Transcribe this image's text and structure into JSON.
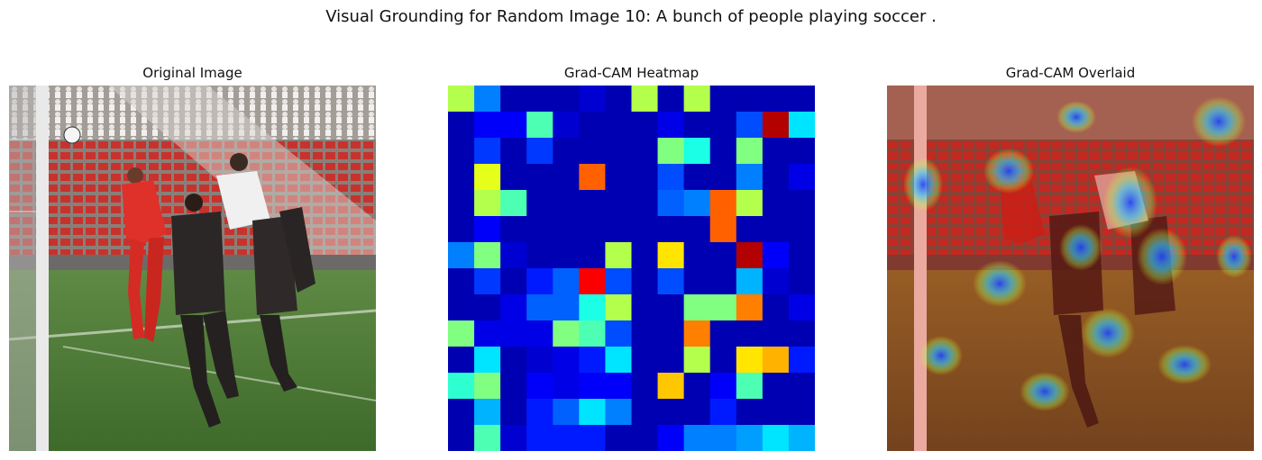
{
  "figure": {
    "suptitle": "Visual Grounding for Random Image 10: A bunch of people playing soccer ."
  },
  "panels": {
    "original_title": "Original Image",
    "heatmap_title": "Grad-CAM Heatmap",
    "overlay_title": "Grad-CAM Overlaid"
  },
  "heatmap": {
    "colormap": "jet",
    "rows": 14,
    "cols": 14,
    "values": [
      [
        0.55,
        0.25,
        0.05,
        0.05,
        0.05,
        0.08,
        0.05,
        0.55,
        0.05,
        0.55,
        0.05,
        0.05,
        0.05,
        0.05
      ],
      [
        0.05,
        0.12,
        0.12,
        0.45,
        0.08,
        0.05,
        0.05,
        0.05,
        0.1,
        0.05,
        0.05,
        0.2,
        0.95,
        0.35
      ],
      [
        0.05,
        0.18,
        0.05,
        0.18,
        0.05,
        0.05,
        0.05,
        0.05,
        0.5,
        0.4,
        0.05,
        0.5,
        0.05,
        0.05
      ],
      [
        0.05,
        0.6,
        0.05,
        0.05,
        0.05,
        0.78,
        0.05,
        0.05,
        0.2,
        0.05,
        0.05,
        0.25,
        0.05,
        0.1
      ],
      [
        0.05,
        0.55,
        0.45,
        0.05,
        0.05,
        0.05,
        0.05,
        0.05,
        0.22,
        0.25,
        0.78,
        0.55,
        0.05,
        0.05
      ],
      [
        0.05,
        0.12,
        0.05,
        0.05,
        0.05,
        0.05,
        0.05,
        0.05,
        0.05,
        0.05,
        0.78,
        0.05,
        0.05,
        0.05
      ],
      [
        0.25,
        0.5,
        0.08,
        0.05,
        0.05,
        0.05,
        0.55,
        0.05,
        0.65,
        0.05,
        0.05,
        0.95,
        0.12,
        0.05
      ],
      [
        0.05,
        0.18,
        0.05,
        0.15,
        0.22,
        0.88,
        0.2,
        0.05,
        0.2,
        0.05,
        0.05,
        0.3,
        0.08,
        0.05
      ],
      [
        0.05,
        0.05,
        0.1,
        0.22,
        0.22,
        0.4,
        0.55,
        0.05,
        0.05,
        0.5,
        0.5,
        0.75,
        0.05,
        0.1
      ],
      [
        0.5,
        0.1,
        0.1,
        0.1,
        0.5,
        0.45,
        0.2,
        0.05,
        0.05,
        0.75,
        0.05,
        0.05,
        0.05,
        0.05
      ],
      [
        0.05,
        0.35,
        0.05,
        0.08,
        0.1,
        0.15,
        0.35,
        0.05,
        0.05,
        0.55,
        0.05,
        0.65,
        0.7,
        0.15
      ],
      [
        0.42,
        0.5,
        0.05,
        0.12,
        0.1,
        0.12,
        0.12,
        0.05,
        0.68,
        0.05,
        0.12,
        0.45,
        0.05,
        0.05
      ],
      [
        0.05,
        0.3,
        0.05,
        0.15,
        0.22,
        0.35,
        0.25,
        0.05,
        0.05,
        0.05,
        0.15,
        0.05,
        0.05,
        0.05
      ],
      [
        0.05,
        0.45,
        0.08,
        0.15,
        0.15,
        0.15,
        0.05,
        0.05,
        0.12,
        0.25,
        0.25,
        0.28,
        0.35,
        0.3
      ]
    ]
  }
}
